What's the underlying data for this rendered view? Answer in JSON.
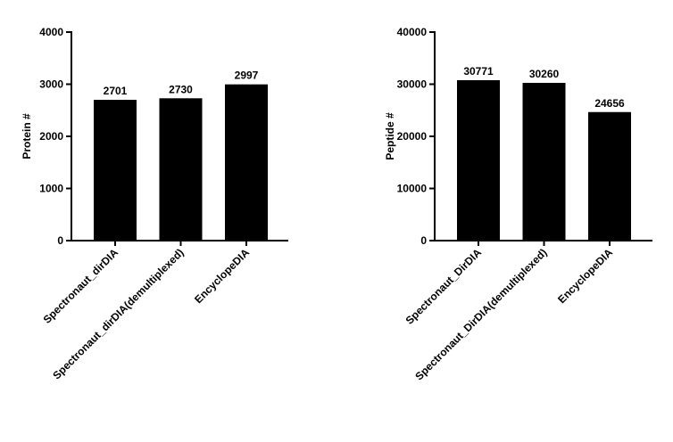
{
  "chart_data": [
    {
      "type": "bar",
      "y_label": "Protein #",
      "categories": [
        "Spectronaut_dirDIA",
        "Spectronaut_dirDIA(demultiplexed)",
        "EncyclopeDIA"
      ],
      "values": [
        2701,
        2730,
        2997
      ],
      "color": "#000000",
      "ylim": [
        0,
        4000
      ],
      "yticks": [
        0,
        1000,
        2000,
        3000,
        4000
      ]
    },
    {
      "type": "bar",
      "y_label": "Peptide #",
      "categories": [
        "Spectronaut_DirDIA",
        "Spectronaut_DirDIA(demultiplexed)",
        "EncyclopeDIA"
      ],
      "values": [
        30771,
        30260,
        24656
      ],
      "color": "#000000",
      "ylim": [
        0,
        40000
      ],
      "yticks": [
        0,
        10000,
        20000,
        30000,
        40000
      ]
    }
  ]
}
